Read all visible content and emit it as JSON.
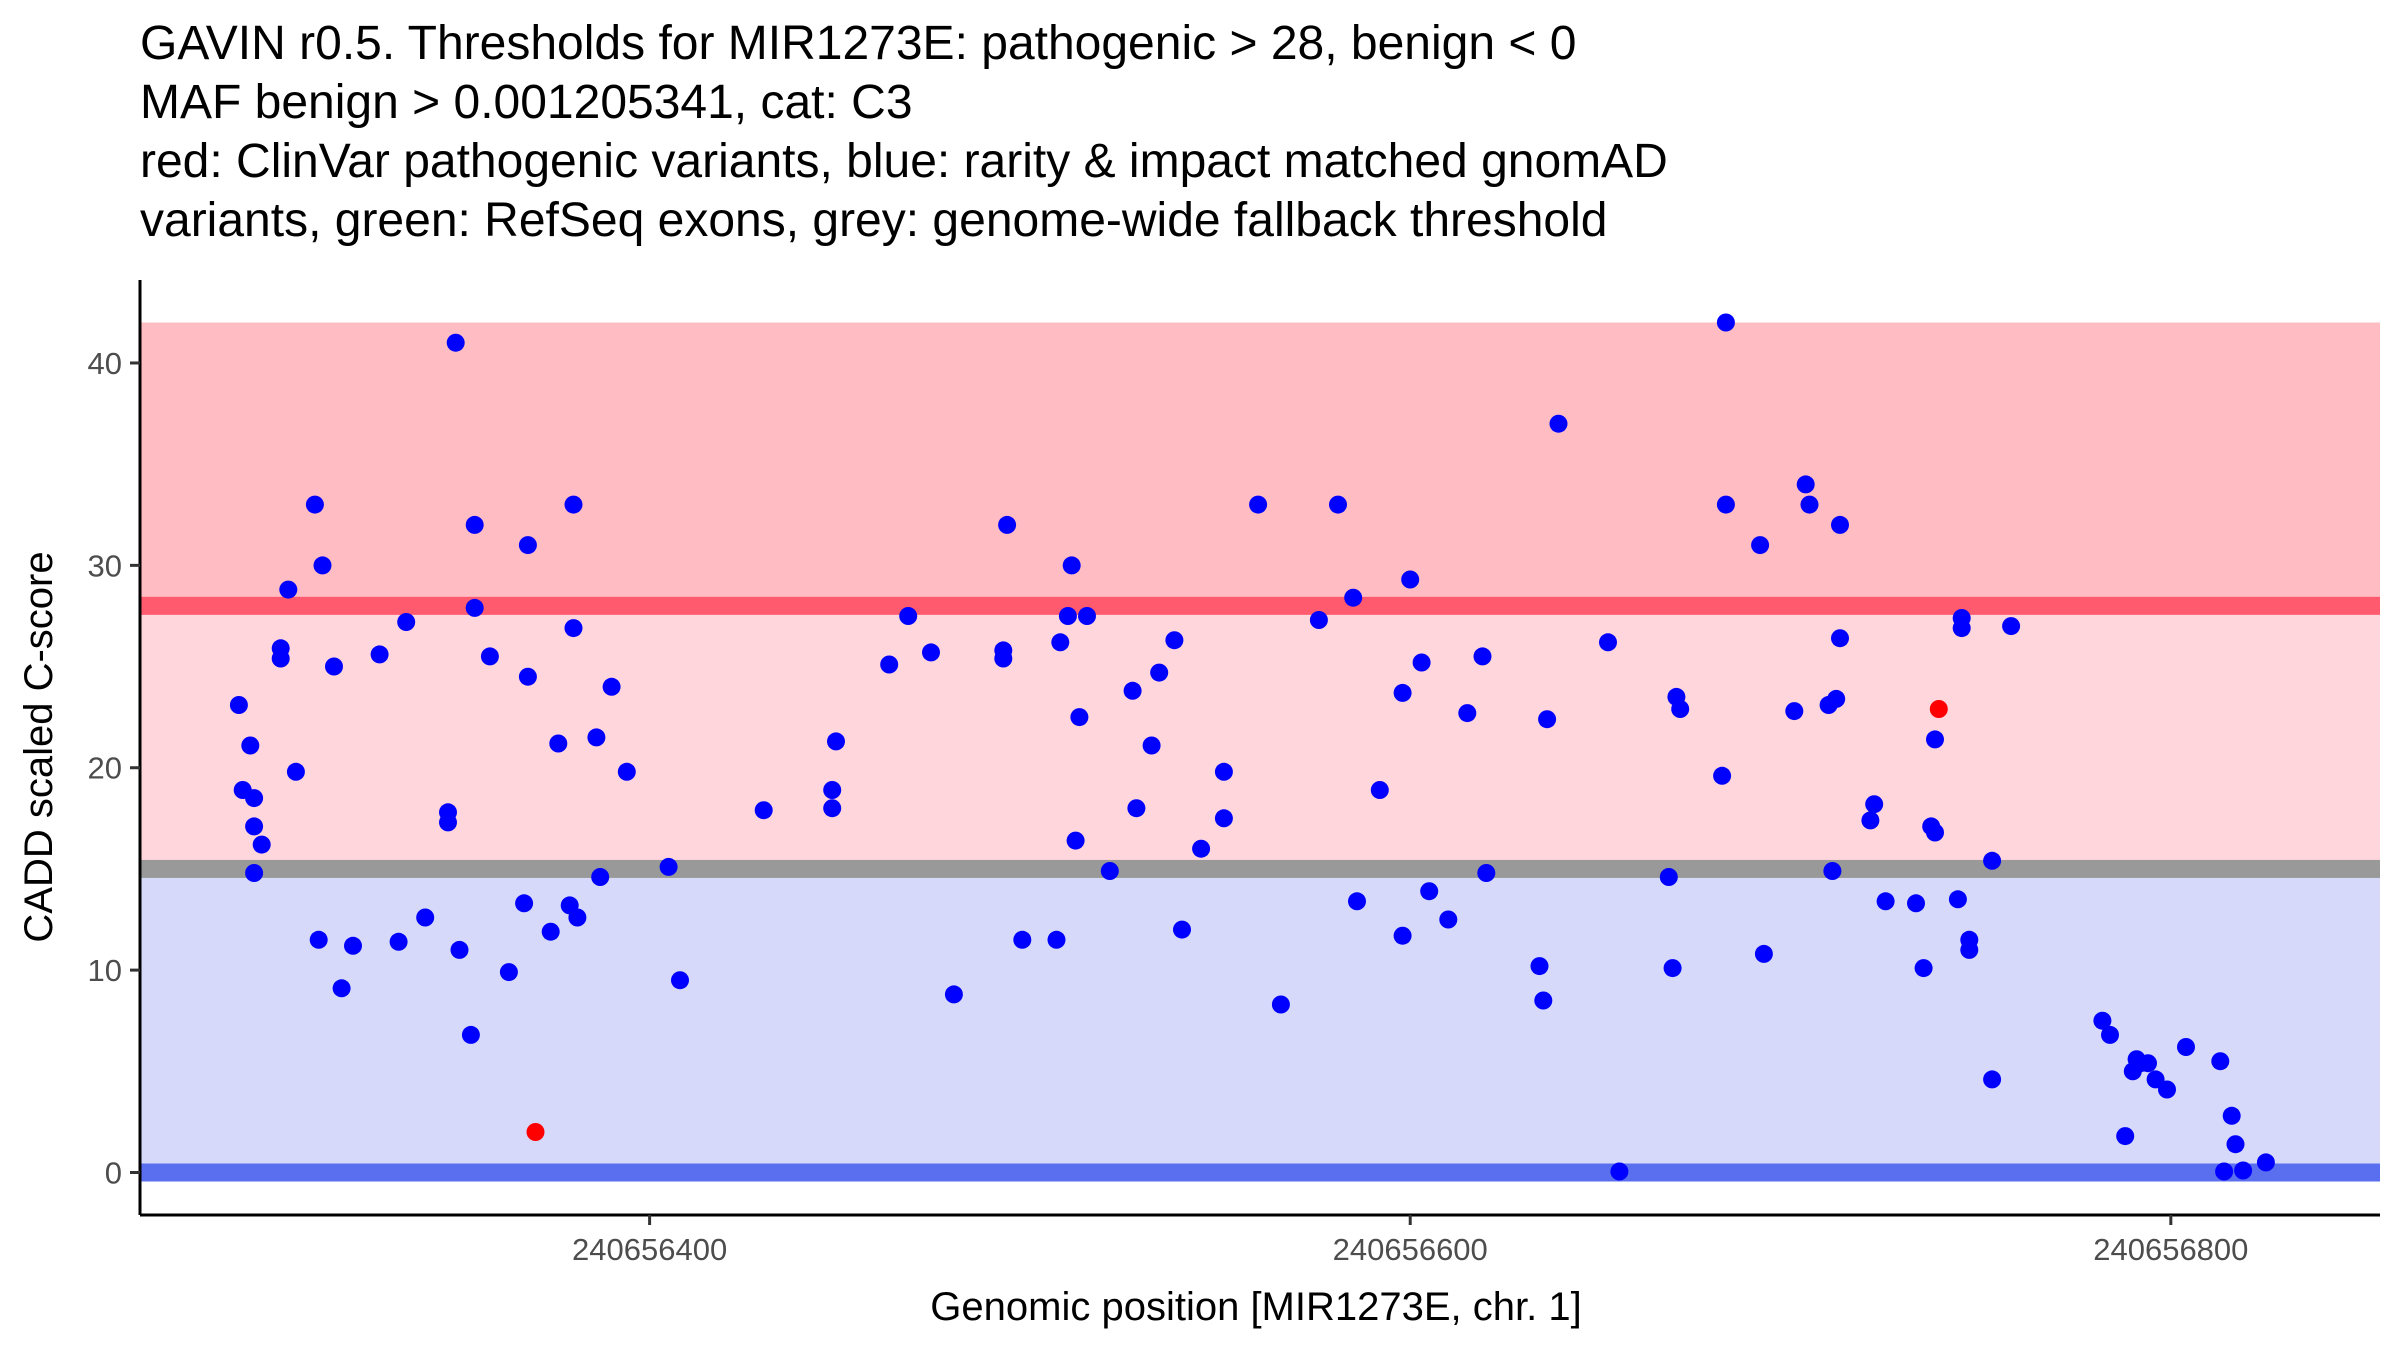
{
  "chart_data": {
    "type": "scatter",
    "title_lines": [
      "GAVIN r0.5. Thresholds for MIR1273E: pathogenic > 28, benign < 0",
      "MAF benign > 0.001205341, cat: C3",
      "red: ClinVar pathogenic variants, blue: rarity & impact matched gnomAD",
      "variants, green: RefSeq exons, grey: genome-wide fallback threshold"
    ],
    "xlabel": "Genomic position [MIR1273E, chr. 1]",
    "ylabel": "CADD scaled C-score",
    "xlim": [
      240656266,
      240656855
    ],
    "ylim": [
      -2.1,
      44.1
    ],
    "x_ticks": [
      240656400,
      240656600,
      240656800
    ],
    "x_tick_labels": [
      "240656400",
      "240656600",
      "240656800"
    ],
    "y_ticks": [
      0,
      10,
      20,
      30,
      40
    ],
    "y_tick_labels": [
      "0",
      "10",
      "20",
      "30",
      "40"
    ],
    "bands": [
      {
        "name": "pathogenic-zone",
        "y0": 28,
        "y1": 42,
        "color": "#ffbcc2"
      },
      {
        "name": "intermediate-zone",
        "y0": 15,
        "y1": 28,
        "color": "#ffd6dc"
      },
      {
        "name": "benign-zone",
        "y0": 0,
        "y1": 15,
        "color": "#d6d9fa"
      }
    ],
    "threshold_lines": [
      {
        "name": "pathogenic-threshold",
        "y": 28,
        "color": "#ff5a6e"
      },
      {
        "name": "fallback-threshold",
        "y": 15,
        "color": "#999999"
      },
      {
        "name": "benign-threshold",
        "y": 0,
        "color": "#5a6ef0"
      }
    ],
    "series": [
      {
        "name": "gnomAD matched variants",
        "color": "#0000ff",
        "points": [
          [
            240656292,
            23.1
          ],
          [
            240656293,
            18.9
          ],
          [
            240656295,
            21.1
          ],
          [
            240656296,
            18.5
          ],
          [
            240656296,
            17.1
          ],
          [
            240656296,
            14.8
          ],
          [
            240656298,
            16.2
          ],
          [
            240656303,
            25.9
          ],
          [
            240656303,
            25.4
          ],
          [
            240656305,
            28.8
          ],
          [
            240656307,
            19.8
          ],
          [
            240656312,
            33.0
          ],
          [
            240656313,
            11.5
          ],
          [
            240656314,
            30.0
          ],
          [
            240656317,
            25.0
          ],
          [
            240656319,
            9.1
          ],
          [
            240656322,
            11.2
          ],
          [
            240656329,
            25.6
          ],
          [
            240656334,
            11.4
          ],
          [
            240656336,
            27.2
          ],
          [
            240656341,
            12.6
          ],
          [
            240656347,
            17.8
          ],
          [
            240656347,
            17.3
          ],
          [
            240656349,
            41.0
          ],
          [
            240656350,
            11.0
          ],
          [
            240656353,
            6.8
          ],
          [
            240656354,
            32.0
          ],
          [
            240656354,
            27.9
          ],
          [
            240656358,
            25.5
          ],
          [
            240656363,
            9.9
          ],
          [
            240656367,
            13.3
          ],
          [
            240656368,
            31.0
          ],
          [
            240656368,
            24.5
          ],
          [
            240656374,
            11.9
          ],
          [
            240656376,
            21.2
          ],
          [
            240656379,
            13.2
          ],
          [
            240656380,
            33.0
          ],
          [
            240656380,
            26.9
          ],
          [
            240656381,
            12.6
          ],
          [
            240656386,
            21.5
          ],
          [
            240656387,
            14.6
          ],
          [
            240656390,
            24.0
          ],
          [
            240656394,
            19.8
          ],
          [
            240656405,
            15.1
          ],
          [
            240656408,
            9.5
          ],
          [
            240656430,
            17.9
          ],
          [
            240656448,
            18.9
          ],
          [
            240656448,
            18.0
          ],
          [
            240656449,
            21.3
          ],
          [
            240656463,
            25.1
          ],
          [
            240656468,
            27.5
          ],
          [
            240656474,
            25.7
          ],
          [
            240656480,
            8.8
          ],
          [
            240656493,
            25.8
          ],
          [
            240656493,
            25.4
          ],
          [
            240656494,
            32.0
          ],
          [
            240656498,
            11.5
          ],
          [
            240656507,
            11.5
          ],
          [
            240656508,
            26.2
          ],
          [
            240656510,
            27.5
          ],
          [
            240656511,
            30.0
          ],
          [
            240656512,
            16.4
          ],
          [
            240656513,
            22.5
          ],
          [
            240656515,
            27.5
          ],
          [
            240656521,
            14.9
          ],
          [
            240656527,
            23.8
          ],
          [
            240656528,
            18.0
          ],
          [
            240656532,
            21.1
          ],
          [
            240656534,
            24.7
          ],
          [
            240656538,
            26.3
          ],
          [
            240656540,
            12.0
          ],
          [
            240656545,
            16.0
          ],
          [
            240656551,
            17.5
          ],
          [
            240656551,
            19.8
          ],
          [
            240656560,
            33.0
          ],
          [
            240656566,
            8.3
          ],
          [
            240656576,
            27.3
          ],
          [
            240656581,
            33.0
          ],
          [
            240656585,
            28.4
          ],
          [
            240656586,
            13.4
          ],
          [
            240656592,
            18.9
          ],
          [
            240656598,
            23.7
          ],
          [
            240656598,
            11.7
          ],
          [
            240656600,
            29.3
          ],
          [
            240656603,
            25.2
          ],
          [
            240656605,
            13.9
          ],
          [
            240656610,
            12.5
          ],
          [
            240656615,
            22.7
          ],
          [
            240656619,
            25.5
          ],
          [
            240656620,
            14.8
          ],
          [
            240656634,
            10.2
          ],
          [
            240656635,
            8.5
          ],
          [
            240656636,
            22.4
          ],
          [
            240656639,
            37.0
          ],
          [
            240656652,
            26.2
          ],
          [
            240656655,
            0.05
          ],
          [
            240656668,
            14.6
          ],
          [
            240656669,
            10.1
          ],
          [
            240656670,
            23.5
          ],
          [
            240656671,
            22.9
          ],
          [
            240656682,
            19.6
          ],
          [
            240656683,
            42.0
          ],
          [
            240656683,
            33.0
          ],
          [
            240656692,
            31.0
          ],
          [
            240656693,
            10.8
          ],
          [
            240656701,
            22.8
          ],
          [
            240656704,
            34.0
          ],
          [
            240656705,
            33.0
          ],
          [
            240656710,
            23.1
          ],
          [
            240656711,
            14.9
          ],
          [
            240656712,
            23.4
          ],
          [
            240656713,
            32.0
          ],
          [
            240656713,
            26.4
          ],
          [
            240656721,
            17.4
          ],
          [
            240656722,
            18.2
          ],
          [
            240656725,
            13.4
          ],
          [
            240656733,
            13.3
          ],
          [
            240656735,
            10.1
          ],
          [
            240656737,
            17.1
          ],
          [
            240656738,
            16.8
          ],
          [
            240656738,
            21.4
          ],
          [
            240656744,
            13.5
          ],
          [
            240656745,
            27.4
          ],
          [
            240656745,
            26.9
          ],
          [
            240656747,
            11.5
          ],
          [
            240656747,
            11.0
          ],
          [
            240656753,
            15.4
          ],
          [
            240656753,
            4.6
          ],
          [
            240656758,
            27.0
          ],
          [
            240656782,
            7.5
          ],
          [
            240656784,
            6.8
          ],
          [
            240656788,
            1.8
          ],
          [
            240656790,
            5.0
          ],
          [
            240656791,
            5.6
          ],
          [
            240656792,
            5.4
          ],
          [
            240656794,
            5.4
          ],
          [
            240656796,
            4.6
          ],
          [
            240656799,
            4.1
          ],
          [
            240656804,
            6.2
          ],
          [
            240656813,
            5.5
          ],
          [
            240656814,
            0.05
          ],
          [
            240656816,
            2.8
          ],
          [
            240656817,
            1.4
          ],
          [
            240656819,
            0.1
          ],
          [
            240656825,
            0.5
          ]
        ]
      },
      {
        "name": "ClinVar pathogenic variants",
        "color": "#ff0000",
        "points": [
          [
            240656370,
            2.0
          ],
          [
            240656739,
            22.9
          ]
        ]
      }
    ]
  }
}
